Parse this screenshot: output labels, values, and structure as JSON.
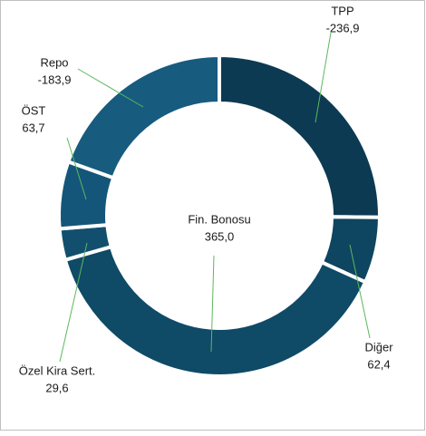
{
  "chart_data": {
    "type": "donut",
    "categories": [
      "TPP",
      "Diğer",
      "Fin. Bonosu",
      "Özel Kira Sert.",
      "ÖST",
      "Repo"
    ],
    "values": [
      -236.9,
      62.4,
      365.0,
      29.6,
      63.7,
      -183.9
    ],
    "value_labels": [
      "-236,9",
      "62,4",
      "365,0",
      "29,6",
      "63,7",
      "-183,9"
    ],
    "colors": [
      "#0c3a52",
      "#0e4560",
      "#0f4a67",
      "#124f6e",
      "#14567a",
      "#175b7e"
    ]
  }
}
